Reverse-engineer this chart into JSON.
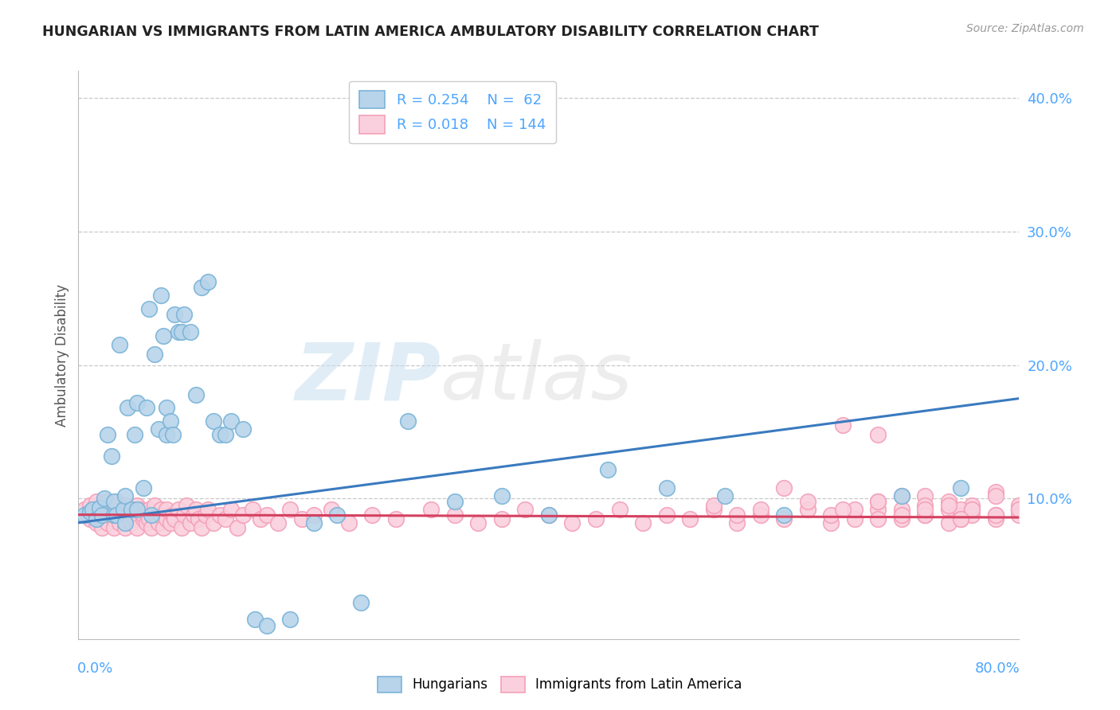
{
  "title": "HUNGARIAN VS IMMIGRANTS FROM LATIN AMERICA AMBULATORY DISABILITY CORRELATION CHART",
  "source": "Source: ZipAtlas.com",
  "ylabel": "Ambulatory Disability",
  "right_yticks": [
    10.0,
    20.0,
    30.0,
    40.0
  ],
  "xlim": [
    0.0,
    0.8
  ],
  "ylim": [
    -0.005,
    0.42
  ],
  "legend_r1": "R = 0.254",
  "legend_n1": "N =  62",
  "legend_r2": "R = 0.018",
  "legend_n2": "N = 144",
  "blue_color": "#7ab4d8",
  "blue_fill": "#b8d4ea",
  "pink_color": "#f4a0b8",
  "pink_fill": "#fad0de",
  "trend_blue": "#3a7abf",
  "trend_pink": "#d44060",
  "grid_color": "#c8c8c8",
  "title_color": "#222222",
  "axis_label_color": "#4da6ff",
  "watermark_zip": "ZIP",
  "watermark_atlas": "atlas",
  "blue_x": [
    0.005,
    0.01,
    0.012,
    0.015,
    0.018,
    0.02,
    0.022,
    0.025,
    0.028,
    0.03,
    0.03,
    0.032,
    0.035,
    0.038,
    0.04,
    0.04,
    0.042,
    0.045,
    0.048,
    0.05,
    0.05,
    0.055,
    0.058,
    0.06,
    0.062,
    0.065,
    0.068,
    0.07,
    0.072,
    0.075,
    0.075,
    0.078,
    0.08,
    0.082,
    0.085,
    0.088,
    0.09,
    0.095,
    0.1,
    0.105,
    0.11,
    0.115,
    0.12,
    0.125,
    0.13,
    0.14,
    0.15,
    0.16,
    0.18,
    0.2,
    0.22,
    0.24,
    0.28,
    0.32,
    0.36,
    0.4,
    0.45,
    0.5,
    0.55,
    0.6,
    0.7,
    0.75
  ],
  "blue_y": [
    0.088,
    0.09,
    0.092,
    0.085,
    0.093,
    0.088,
    0.1,
    0.148,
    0.132,
    0.088,
    0.098,
    0.088,
    0.215,
    0.092,
    0.102,
    0.082,
    0.168,
    0.092,
    0.148,
    0.092,
    0.172,
    0.108,
    0.168,
    0.242,
    0.088,
    0.208,
    0.152,
    0.252,
    0.222,
    0.148,
    0.168,
    0.158,
    0.148,
    0.238,
    0.225,
    0.225,
    0.238,
    0.225,
    0.178,
    0.258,
    0.262,
    0.158,
    0.148,
    0.148,
    0.158,
    0.152,
    0.01,
    0.005,
    0.01,
    0.082,
    0.088,
    0.022,
    0.158,
    0.098,
    0.102,
    0.088,
    0.122,
    0.108,
    0.102,
    0.088,
    0.102,
    0.108
  ],
  "pink_x": [
    0.005,
    0.008,
    0.01,
    0.01,
    0.012,
    0.015,
    0.015,
    0.018,
    0.02,
    0.02,
    0.02,
    0.022,
    0.025,
    0.025,
    0.025,
    0.028,
    0.03,
    0.03,
    0.03,
    0.032,
    0.035,
    0.035,
    0.038,
    0.04,
    0.04,
    0.04,
    0.042,
    0.045,
    0.045,
    0.048,
    0.05,
    0.05,
    0.05,
    0.052,
    0.055,
    0.055,
    0.058,
    0.06,
    0.06,
    0.062,
    0.065,
    0.065,
    0.068,
    0.07,
    0.07,
    0.072,
    0.075,
    0.075,
    0.078,
    0.08,
    0.082,
    0.085,
    0.088,
    0.09,
    0.092,
    0.095,
    0.098,
    0.1,
    0.102,
    0.105,
    0.108,
    0.11,
    0.115,
    0.12,
    0.125,
    0.13,
    0.135,
    0.14,
    0.148,
    0.155,
    0.16,
    0.17,
    0.18,
    0.19,
    0.2,
    0.215,
    0.23,
    0.25,
    0.27,
    0.3,
    0.32,
    0.34,
    0.36,
    0.38,
    0.4,
    0.42,
    0.44,
    0.46,
    0.48,
    0.5,
    0.52,
    0.54,
    0.56,
    0.58,
    0.6,
    0.62,
    0.64,
    0.66,
    0.68,
    0.7,
    0.54,
    0.56,
    0.58,
    0.6,
    0.62,
    0.64,
    0.66,
    0.68,
    0.7,
    0.72,
    0.74,
    0.75,
    0.76,
    0.78,
    0.8,
    0.65,
    0.68,
    0.7,
    0.72,
    0.74,
    0.75,
    0.76,
    0.78,
    0.8,
    0.68,
    0.7,
    0.72,
    0.74,
    0.75,
    0.76,
    0.78,
    0.8,
    0.72,
    0.74,
    0.76,
    0.78,
    0.8,
    0.65,
    0.68,
    0.7,
    0.72,
    0.75,
    0.78,
    0.8
  ],
  "pink_y": [
    0.092,
    0.088,
    0.085,
    0.095,
    0.092,
    0.082,
    0.098,
    0.088,
    0.085,
    0.092,
    0.078,
    0.095,
    0.088,
    0.098,
    0.082,
    0.09,
    0.085,
    0.092,
    0.078,
    0.098,
    0.088,
    0.082,
    0.092,
    0.085,
    0.095,
    0.078,
    0.088,
    0.092,
    0.082,
    0.085,
    0.088,
    0.095,
    0.078,
    0.092,
    0.085,
    0.088,
    0.082,
    0.092,
    0.085,
    0.078,
    0.088,
    0.095,
    0.082,
    0.088,
    0.092,
    0.078,
    0.085,
    0.092,
    0.082,
    0.088,
    0.085,
    0.092,
    0.078,
    0.088,
    0.095,
    0.082,
    0.088,
    0.092,
    0.085,
    0.078,
    0.088,
    0.092,
    0.082,
    0.088,
    0.085,
    0.092,
    0.078,
    0.088,
    0.092,
    0.085,
    0.088,
    0.082,
    0.092,
    0.085,
    0.088,
    0.092,
    0.082,
    0.088,
    0.085,
    0.092,
    0.088,
    0.082,
    0.085,
    0.092,
    0.088,
    0.082,
    0.085,
    0.092,
    0.082,
    0.088,
    0.085,
    0.092,
    0.082,
    0.088,
    0.085,
    0.092,
    0.082,
    0.085,
    0.092,
    0.088,
    0.095,
    0.088,
    0.092,
    0.108,
    0.098,
    0.088,
    0.092,
    0.098,
    0.085,
    0.102,
    0.092,
    0.088,
    0.095,
    0.105,
    0.092,
    0.155,
    0.148,
    0.102,
    0.095,
    0.098,
    0.092,
    0.088,
    0.102,
    0.092,
    0.098,
    0.092,
    0.088,
    0.095,
    0.085,
    0.092,
    0.088,
    0.095,
    0.088,
    0.082,
    0.092,
    0.085,
    0.088,
    0.092,
    0.085,
    0.088,
    0.092,
    0.085,
    0.088,
    0.092
  ],
  "blue_trend_x": [
    0.0,
    0.8
  ],
  "blue_trend_y": [
    0.082,
    0.175
  ],
  "pink_trend_x": [
    0.0,
    0.8
  ],
  "pink_trend_y": [
    0.088,
    0.086
  ]
}
